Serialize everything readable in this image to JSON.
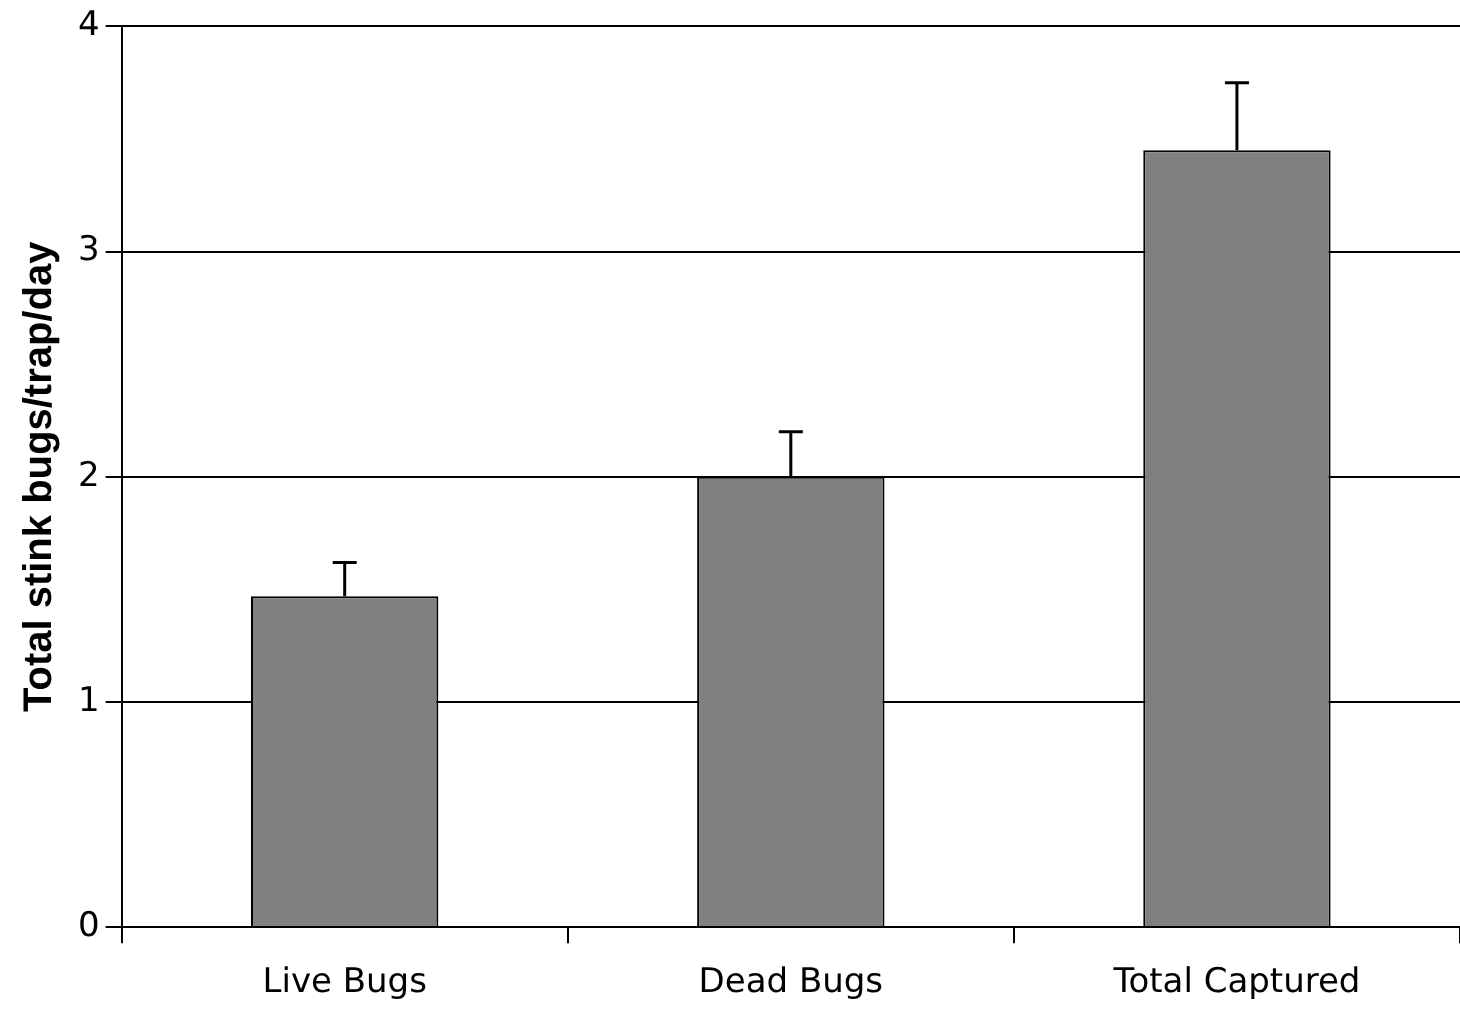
{
  "chart_data": {
    "type": "bar",
    "ylabel": "Total stink bugs/trap/day",
    "categories": [
      "Live Bugs",
      "Dead Bugs",
      "Total Captured"
    ],
    "values": [
      1.47,
      2.0,
      3.45
    ],
    "errors": [
      [
        1.47,
        1.62
      ],
      [
        2.0,
        2.2
      ],
      [
        3.45,
        3.75
      ]
    ],
    "color": "#808080",
    "ylim": [
      0,
      4
    ],
    "yticks": [
      0,
      1,
      2,
      3,
      4
    ],
    "grid": "y"
  }
}
